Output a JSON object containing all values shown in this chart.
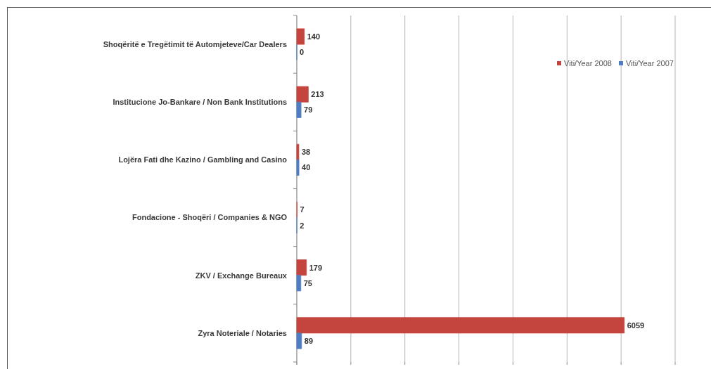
{
  "chart_data": {
    "type": "bar",
    "orientation": "horizontal",
    "categories": [
      "Shoqëritë e Tregëtimit të Automjeteve/Car Dealers",
      "Institucione Jo-Bankare / Non Bank Institutions",
      "Lojëra Fati dhe Kazino / Gambling and Casino",
      "Fondacione - Shoqëri / Companies & NGO",
      "ZKV / Exchange Bureaux",
      "Zyra Noteriale / Notaries"
    ],
    "series": [
      {
        "name": "Viti/Year 2008",
        "color": "#c4453d",
        "values": [
          140,
          213,
          38,
          7,
          179,
          6059
        ]
      },
      {
        "name": "Viti/Year 2007",
        "color": "#4f7dc4",
        "values": [
          0,
          79,
          40,
          2,
          75,
          89
        ]
      }
    ],
    "xlim": [
      0,
      7000
    ],
    "xticks": [
      {
        "value": 0,
        "label": null
      },
      {
        "value": 1000,
        "label": null
      },
      {
        "value": 2000,
        "label": null
      },
      {
        "value": 3000,
        "label": null
      },
      {
        "value": 4000,
        "label": null
      },
      {
        "value": 5000,
        "label": null
      },
      {
        "value": 6000,
        "label": null
      },
      {
        "value": 7000,
        "label": null
      }
    ],
    "grid": "x",
    "legend": "top right",
    "data_labels": true,
    "tick_labels": "y"
  }
}
